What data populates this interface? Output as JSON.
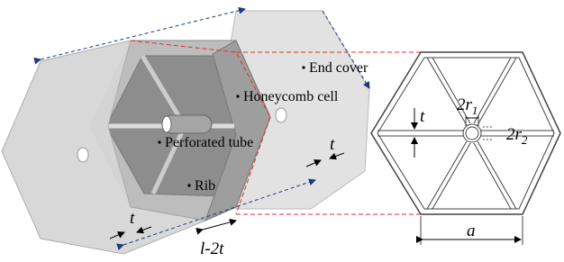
{
  "labels": {
    "end_cover": "End cover",
    "honeycomb_cell": "Honeycomb cell",
    "perforated_tube": "Perforated tube",
    "rib": "Rib"
  },
  "dimensions": {
    "t_left": "t",
    "t_right": "t",
    "t_schematic": "t",
    "l_minus_2t": "l-2t",
    "a": "a",
    "r1": {
      "main": "2r",
      "sub": "1"
    },
    "r2": {
      "main": "2r",
      "sub": "2"
    }
  }
}
